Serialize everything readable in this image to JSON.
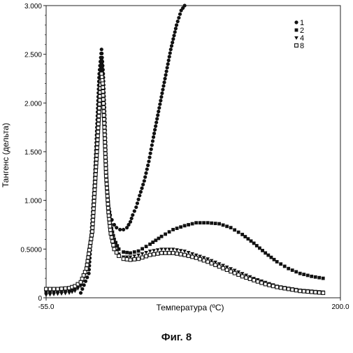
{
  "figure_caption": "Фиг. 8",
  "chart_data": {
    "type": "scatter",
    "xlabel": "Температура (ºС)",
    "ylabel": "Тангенс (дельта)",
    "xlim": [
      -55.0,
      200.0
    ],
    "ylim": [
      0,
      3.0
    ],
    "x_tick_labels": [
      "-55.0",
      "200.0"
    ],
    "y_ticks": [
      0,
      0.5,
      1.0,
      1.5,
      2.0,
      2.5,
      3.0
    ],
    "y_tick_labels": [
      "0",
      "0.5000",
      "1.000",
      "1.500",
      "2.000",
      "2.500",
      "3.000"
    ],
    "legend_position": "top-right",
    "grid": false,
    "series": [
      {
        "name": "1",
        "marker": "circle",
        "x": [
          -25,
          -18,
          -13,
          -9,
          -7,
          -5.5,
          -4,
          -2.5,
          -1,
          0.5,
          2,
          4,
          6,
          9,
          12,
          15,
          18,
          20,
          23,
          26,
          30,
          34,
          38,
          43,
          48,
          53,
          58,
          62,
          65
        ],
        "y": [
          0.05,
          0.25,
          1.2,
          2.3,
          2.55,
          2.3,
          1.8,
          1.2,
          0.95,
          0.85,
          0.8,
          0.75,
          0.72,
          0.7,
          0.7,
          0.72,
          0.78,
          0.85,
          0.93,
          1.05,
          1.2,
          1.4,
          1.65,
          1.95,
          2.25,
          2.55,
          2.8,
          2.95,
          3.0
        ]
      },
      {
        "name": "2",
        "marker": "square",
        "x": [
          -55,
          -45,
          -35,
          -30,
          -25,
          -20,
          -15,
          -11,
          -8,
          -7,
          -6,
          -4.5,
          -3,
          -1,
          1,
          4,
          8,
          12,
          18,
          25,
          35,
          45,
          55,
          65,
          75,
          85,
          95,
          105,
          115,
          125,
          135,
          145,
          155,
          165,
          175,
          185
        ],
        "y": [
          0.06,
          0.07,
          0.08,
          0.1,
          0.15,
          0.3,
          0.7,
          1.6,
          2.25,
          2.45,
          2.3,
          1.8,
          1.3,
          0.95,
          0.75,
          0.6,
          0.5,
          0.47,
          0.46,
          0.48,
          0.55,
          0.63,
          0.7,
          0.74,
          0.77,
          0.77,
          0.76,
          0.72,
          0.65,
          0.56,
          0.46,
          0.37,
          0.3,
          0.25,
          0.22,
          0.2
        ]
      },
      {
        "name": "4",
        "marker": "triangle-down",
        "x": [
          -55,
          -45,
          -35,
          -30,
          -25,
          -20,
          -15,
          -11,
          -8,
          -7,
          -6,
          -4.5,
          -3,
          -1,
          1,
          4,
          8,
          12,
          18,
          25,
          35,
          45,
          55,
          65,
          75,
          85,
          95,
          105,
          115,
          125,
          135,
          145,
          155,
          165,
          175,
          185
        ],
        "y": [
          0.03,
          0.04,
          0.05,
          0.07,
          0.12,
          0.28,
          0.7,
          1.5,
          2.2,
          2.35,
          2.2,
          1.7,
          1.2,
          0.85,
          0.65,
          0.52,
          0.45,
          0.42,
          0.42,
          0.44,
          0.48,
          0.5,
          0.5,
          0.48,
          0.44,
          0.4,
          0.35,
          0.3,
          0.25,
          0.2,
          0.16,
          0.12,
          0.1,
          0.08,
          0.07,
          0.06
        ]
      },
      {
        "name": "8",
        "marker": "square-open",
        "x": [
          -55,
          -45,
          -35,
          -30,
          -25,
          -20,
          -15,
          -11,
          -8,
          -7,
          -6,
          -4.5,
          -3,
          -1,
          1,
          4,
          8,
          12,
          18,
          25,
          35,
          45,
          55,
          65,
          75,
          85,
          95,
          105,
          115,
          125,
          135,
          145,
          155,
          165,
          175,
          185
        ],
        "y": [
          0.09,
          0.09,
          0.1,
          0.12,
          0.16,
          0.3,
          0.68,
          1.5,
          2.15,
          2.3,
          2.2,
          1.75,
          1.25,
          0.88,
          0.66,
          0.5,
          0.43,
          0.4,
          0.39,
          0.4,
          0.44,
          0.46,
          0.46,
          0.44,
          0.41,
          0.37,
          0.32,
          0.27,
          0.22,
          0.18,
          0.14,
          0.11,
          0.09,
          0.07,
          0.06,
          0.05
        ]
      }
    ]
  },
  "style": {
    "axis_color": "#222222",
    "marker_color": "#111111",
    "background": "#ffffff"
  }
}
